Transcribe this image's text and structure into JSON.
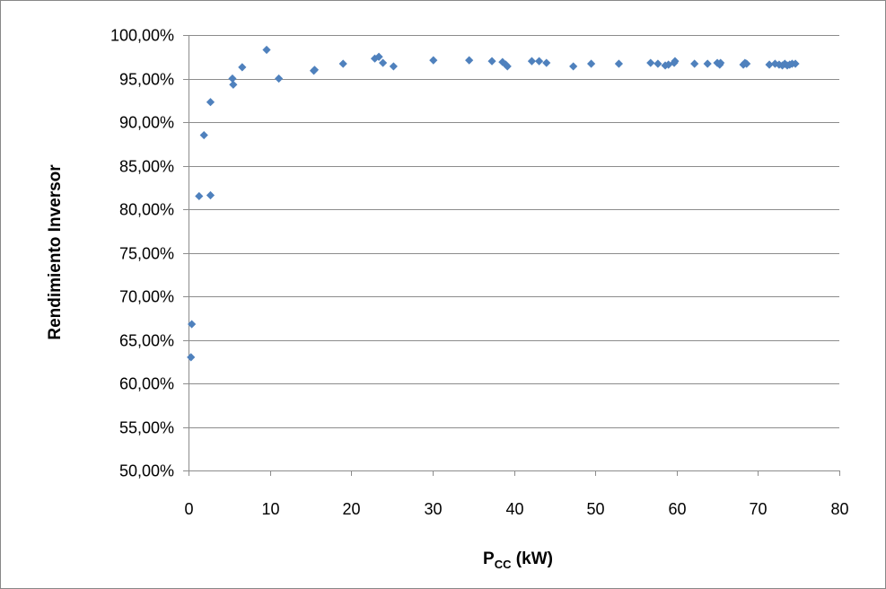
{
  "chart_data": {
    "type": "scatter",
    "title": "",
    "ylabel": "Rendimiento Inversor",
    "xlabel": {
      "main": "P",
      "sub": "CC",
      "unit": " (kW)"
    },
    "xlim": [
      0,
      80
    ],
    "ylim": [
      50,
      100
    ],
    "x_ticks": [
      0,
      10,
      20,
      30,
      40,
      50,
      60,
      70,
      80
    ],
    "x_tick_labels": [
      "0",
      "10",
      "20",
      "30",
      "40",
      "50",
      "60",
      "70",
      "80"
    ],
    "y_ticks": [
      50,
      55,
      60,
      65,
      70,
      75,
      80,
      85,
      90,
      95,
      100
    ],
    "y_tick_labels": [
      "50,00%",
      "55,00%",
      "60,00%",
      "65,00%",
      "70,00%",
      "75,00%",
      "80,00%",
      "85,00%",
      "90,00%",
      "95,00%",
      "100,00%"
    ],
    "grid": "horizontal",
    "marker_color": "#4F81BD",
    "marker": "diamond",
    "points": [
      [
        0.3,
        63.0
      ],
      [
        0.4,
        66.8
      ],
      [
        1.3,
        81.5
      ],
      [
        1.9,
        88.5
      ],
      [
        2.7,
        92.3
      ],
      [
        2.7,
        81.6
      ],
      [
        5.4,
        95.0
      ],
      [
        5.5,
        94.3
      ],
      [
        6.6,
        96.3
      ],
      [
        9.6,
        98.3
      ],
      [
        11.1,
        95.0
      ],
      [
        15.4,
        95.9
      ],
      [
        15.5,
        96.0
      ],
      [
        19.0,
        96.7
      ],
      [
        22.9,
        97.3
      ],
      [
        23.4,
        97.5
      ],
      [
        23.9,
        96.8
      ],
      [
        25.2,
        96.4
      ],
      [
        30.1,
        97.1
      ],
      [
        34.5,
        97.1
      ],
      [
        37.3,
        97.0
      ],
      [
        38.6,
        96.9
      ],
      [
        39.0,
        96.6
      ],
      [
        39.2,
        96.4
      ],
      [
        42.2,
        97.0
      ],
      [
        43.1,
        97.0
      ],
      [
        44.0,
        96.8
      ],
      [
        47.3,
        96.4
      ],
      [
        49.5,
        96.7
      ],
      [
        52.9,
        96.7
      ],
      [
        56.8,
        96.8
      ],
      [
        57.7,
        96.7
      ],
      [
        58.6,
        96.5
      ],
      [
        59.0,
        96.6
      ],
      [
        59.7,
        96.8
      ],
      [
        59.8,
        97.0
      ],
      [
        62.2,
        96.7
      ],
      [
        63.8,
        96.7
      ],
      [
        65.0,
        96.8
      ],
      [
        65.3,
        96.6
      ],
      [
        65.4,
        96.8
      ],
      [
        68.2,
        96.6
      ],
      [
        68.4,
        96.8
      ],
      [
        68.6,
        96.7
      ],
      [
        71.4,
        96.6
      ],
      [
        72.1,
        96.7
      ],
      [
        72.6,
        96.6
      ],
      [
        73.0,
        96.5
      ],
      [
        73.3,
        96.7
      ],
      [
        73.6,
        96.5
      ],
      [
        73.9,
        96.6
      ],
      [
        74.2,
        96.7
      ],
      [
        74.6,
        96.7
      ]
    ]
  }
}
